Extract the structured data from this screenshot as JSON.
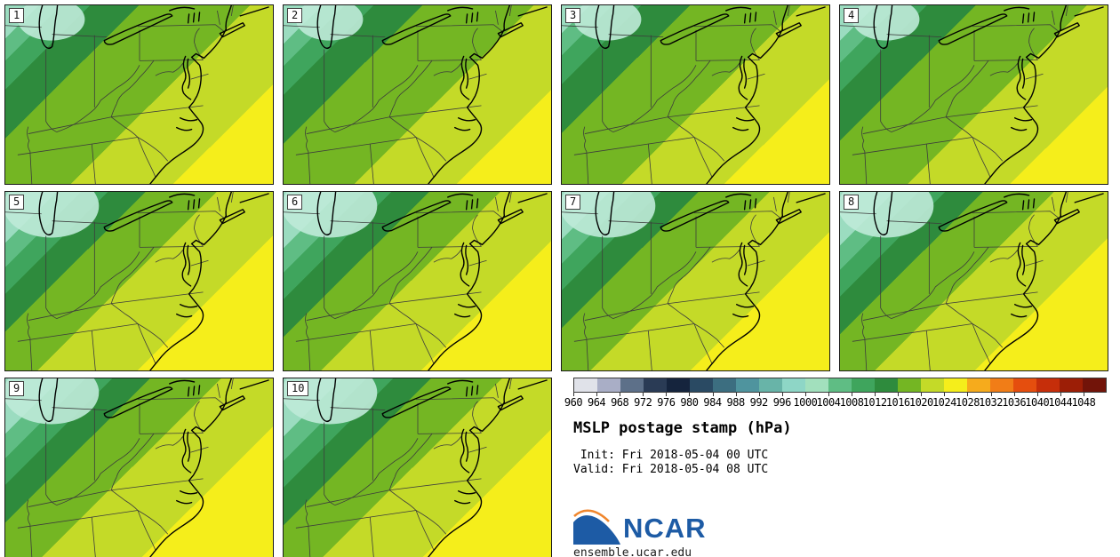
{
  "figure": {
    "background": "#ffffff"
  },
  "panels": [
    {
      "label": "1",
      "variant": "A",
      "jitter": 0.0
    },
    {
      "label": "2",
      "variant": "A",
      "jitter": 0.012
    },
    {
      "label": "3",
      "variant": "A",
      "jitter": -0.012
    },
    {
      "label": "4",
      "variant": "A",
      "jitter": 0.005
    },
    {
      "label": "5",
      "variant": "B",
      "jitter": 0.0
    },
    {
      "label": "6",
      "variant": "B",
      "jitter": 0.012
    },
    {
      "label": "7",
      "variant": "B",
      "jitter": -0.008
    },
    {
      "label": "8",
      "variant": "B",
      "jitter": 0.006
    },
    {
      "label": "9",
      "variant": "B",
      "jitter": 0.01
    },
    {
      "label": "10",
      "variant": "B",
      "jitter": 0.016
    }
  ],
  "map": {
    "bands": {
      "colors": [
        "#9bdcc0",
        "#5fbd84",
        "#3fa55d",
        "#2e8b3d",
        "#74b623",
        "#c4da28",
        "#f5ee1b"
      ],
      "offsets_A": [
        0.075,
        0.125,
        0.19,
        0.3,
        0.55,
        0.78
      ],
      "offsets_B": [
        0.115,
        0.17,
        0.23,
        0.315,
        0.475,
        0.7
      ]
    },
    "low_patch_color": "#bfead8",
    "state_line_color": "#3c3c3c",
    "coast_color": "#000000"
  },
  "colorbar": {
    "ticks": [
      "960",
      "964",
      "968",
      "972",
      "976",
      "980",
      "984",
      "988",
      "992",
      "996",
      "1000",
      "1004",
      "1008",
      "1012",
      "1016",
      "1020",
      "1024",
      "1028",
      "1032",
      "1036",
      "1040",
      "1044",
      "1048"
    ],
    "colors": [
      "#e0e2e9",
      "#a9aec6",
      "#5d7089",
      "#2a3b55",
      "#15243d",
      "#2a4a63",
      "#3c6e80",
      "#4f949e",
      "#68b4a8",
      "#8ed6c6",
      "#a2e0bd",
      "#5fbd84",
      "#3fa55d",
      "#2e8b3d",
      "#74b623",
      "#c4da28",
      "#f5ee1b",
      "#f6ab1c",
      "#f17d17",
      "#e54e0e",
      "#c62e0a",
      "#9c1e06",
      "#721409"
    ]
  },
  "info": {
    "title": "MSLP postage stamp (hPa)",
    "init_line": " Init: Fri 2018-05-04 00 UTC",
    "valid_line": "Valid: Fri 2018-05-04 08 UTC",
    "logo_text": "NCAR",
    "logo_blue": "#1d5ba5",
    "logo_orange": "#f0862d",
    "url": "ensemble.ucar.edu"
  },
  "chart_data": {
    "type": "heatmap",
    "title": "MSLP postage stamp (hPa)",
    "field": "Mean sea level pressure",
    "units": "hPa",
    "init": "Fri 2018-05-04 00 UTC",
    "valid": "Fri 2018-05-04 08 UTC",
    "members": [
      "1",
      "2",
      "3",
      "4",
      "5",
      "6",
      "7",
      "8",
      "9",
      "10"
    ],
    "colorbar_ticks": [
      960,
      964,
      968,
      972,
      976,
      980,
      984,
      988,
      992,
      996,
      1000,
      1004,
      1008,
      1012,
      1016,
      1020,
      1024,
      1028,
      1032,
      1036,
      1040,
      1044,
      1048
    ],
    "colorbar_interval_hpa": 4,
    "displayed_range_hpa": [
      996,
      1028
    ],
    "gradient_orientation": "lower pressure to the northwest (teal/green), higher pressure to the southeast (yellow)",
    "region": "Mid-Atlantic / Southeast United States (Great Lakes to Carolinas coast)",
    "layout": "10 ensemble-member stamps in a 4x3 grid; colorbar, title, init/valid times and NCAR logo in lower-right quadrant",
    "legend_position": "right column, above title"
  }
}
